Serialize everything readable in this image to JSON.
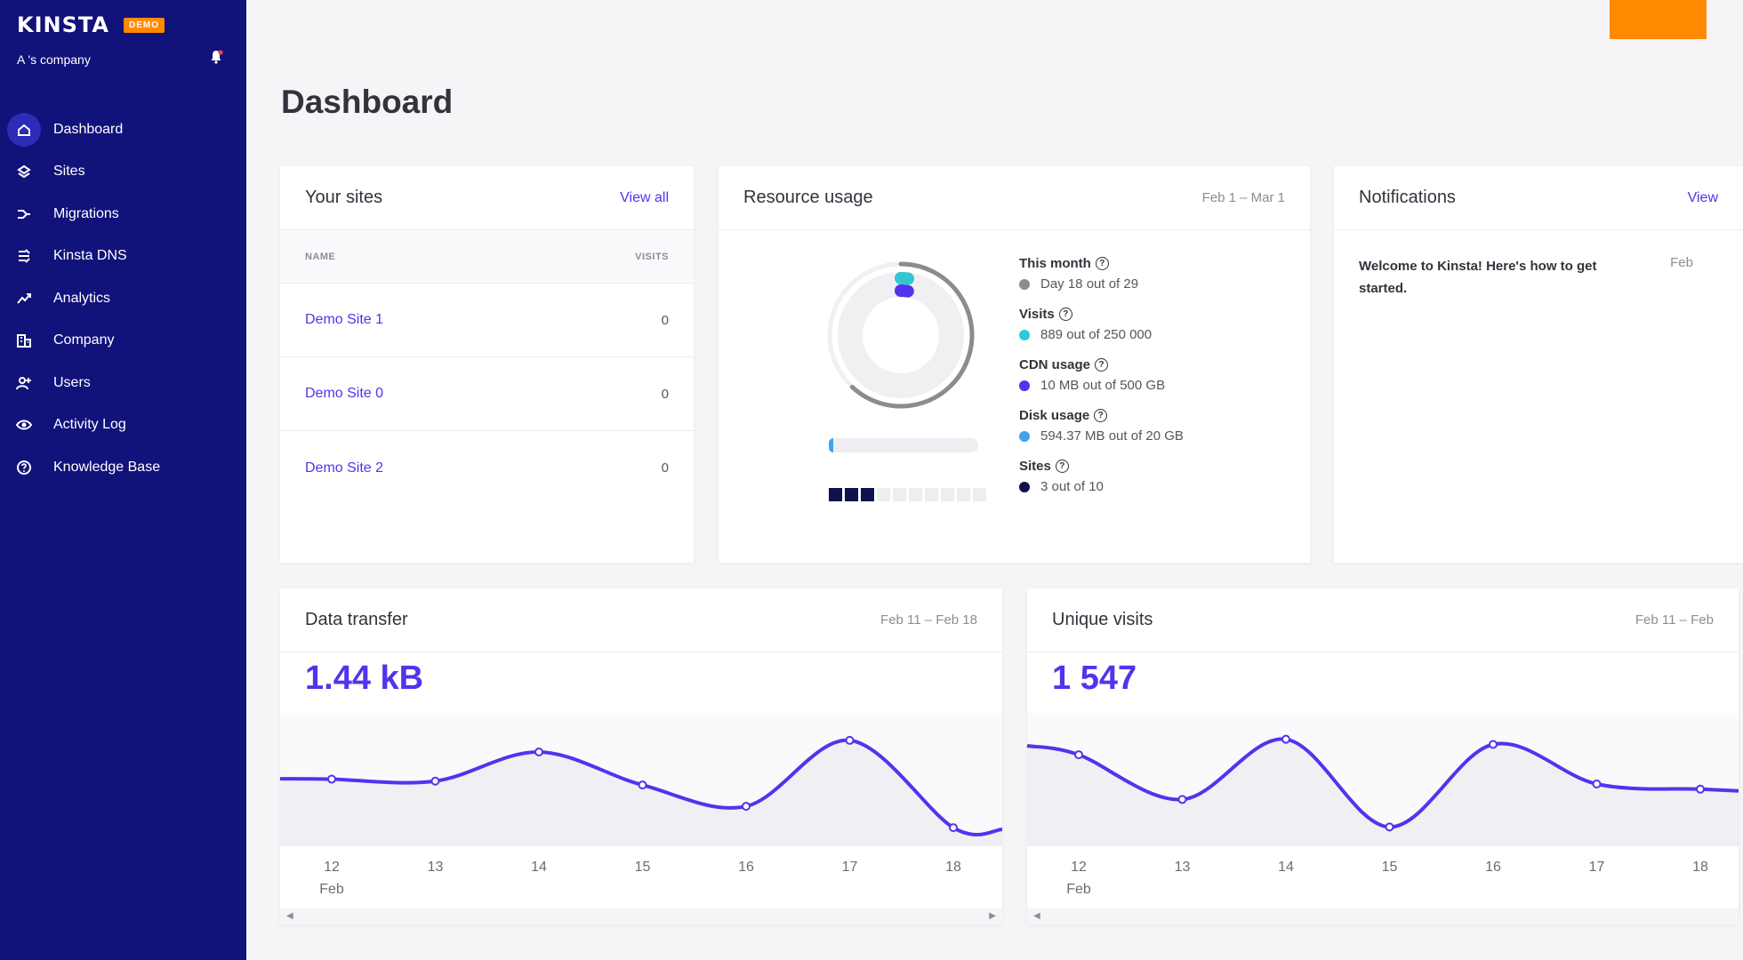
{
  "brand": {
    "logo": "KINSTA",
    "badge": "DEMO",
    "company": "A 's company"
  },
  "nav": [
    {
      "label": "Dashboard",
      "icon": "home-icon",
      "active": true
    },
    {
      "label": "Sites",
      "icon": "layers-icon"
    },
    {
      "label": "Migrations",
      "icon": "migrate-icon"
    },
    {
      "label": "Kinsta DNS",
      "icon": "dns-icon"
    },
    {
      "label": "Analytics",
      "icon": "trend-icon"
    },
    {
      "label": "Company",
      "icon": "building-icon"
    },
    {
      "label": "Users",
      "icon": "add-user-icon"
    },
    {
      "label": "Activity Log",
      "icon": "eye-icon"
    },
    {
      "label": "Knowledge Base",
      "icon": "help-icon"
    }
  ],
  "page": {
    "title": "Dashboard"
  },
  "sites": {
    "title": "Your sites",
    "view_all": "View all",
    "col_name": "NAME",
    "col_visits": "VISITS",
    "rows": [
      {
        "name": "Demo Site 1",
        "visits": "0"
      },
      {
        "name": "Demo Site 0",
        "visits": "0"
      },
      {
        "name": "Demo Site 2",
        "visits": "0"
      }
    ]
  },
  "resource": {
    "title": "Resource usage",
    "period": "Feb 1 – Mar 1",
    "stats": [
      {
        "title": "This month",
        "value": "Day 18 out of 29",
        "color": "#8c8c8c"
      },
      {
        "title": "Visits",
        "value": "889 out of 250 000",
        "color": "#30c9d2"
      },
      {
        "title": "CDN usage",
        "value": "10 MB out of 500 GB",
        "color": "#5333ed"
      },
      {
        "title": "Disk usage",
        "value": "594.37 MB out of 20 GB",
        "color": "#3ea3f0"
      },
      {
        "title": "Sites",
        "value": "3 out of 10",
        "color": "#10104f"
      }
    ],
    "month_fraction": 0.62,
    "visits_fraction": 0.0036,
    "cdn_fraction": 2e-05,
    "disk_fraction": 0.029,
    "sites_used": 3,
    "sites_total": 10
  },
  "notifications": {
    "title": "Notifications",
    "view": "View",
    "item_text": "Welcome to Kinsta! Here's how to get started.",
    "item_date": "Feb"
  },
  "chart_data": [
    {
      "type": "line",
      "title": "Data transfer",
      "period": "Feb 11 – Feb 18",
      "total": "1.44 kB",
      "x": [
        "12",
        "13",
        "14",
        "15",
        "16",
        "17",
        "18"
      ],
      "x_sub": "Feb",
      "values": [
        0.2,
        0.19,
        0.34,
        0.17,
        0.06,
        0.4,
        -0.05
      ]
    },
    {
      "type": "line",
      "title": "Unique visits",
      "period": "Feb 11 – Feb",
      "total": "1 547",
      "x": [
        "12",
        "13",
        "14",
        "15",
        "16",
        "17",
        "18"
      ],
      "x_sub": "Feb",
      "values": [
        290,
        160,
        335,
        80,
        320,
        205,
        190
      ]
    }
  ]
}
